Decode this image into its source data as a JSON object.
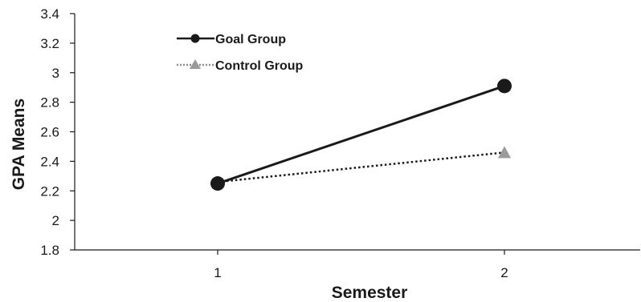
{
  "chart_data": {
    "type": "line",
    "title": "",
    "xlabel": "Semester",
    "ylabel": "GPA Means",
    "x": [
      1,
      2
    ],
    "x_tick_labels": [
      "1",
      "2"
    ],
    "ylim": [
      1.8,
      3.4
    ],
    "y_ticks": [
      1.8,
      2,
      2.2,
      2.4,
      2.6,
      2.8,
      3,
      3.2,
      3.4
    ],
    "y_tick_labels": [
      "1.8",
      "2",
      "2.2",
      "2.4",
      "2.6",
      "2.8",
      "3",
      "3.2",
      "3.4"
    ],
    "grid": false,
    "legend_position": "top-left",
    "series": [
      {
        "name": "Goal Group",
        "values": [
          2.25,
          2.91
        ],
        "color": "#1a1a1a",
        "line_style": "solid",
        "marker": "circle"
      },
      {
        "name": "Control Group",
        "values": [
          2.26,
          2.46
        ],
        "color": "#9a9a9a",
        "line_style": "dotted",
        "marker": "triangle"
      }
    ]
  }
}
